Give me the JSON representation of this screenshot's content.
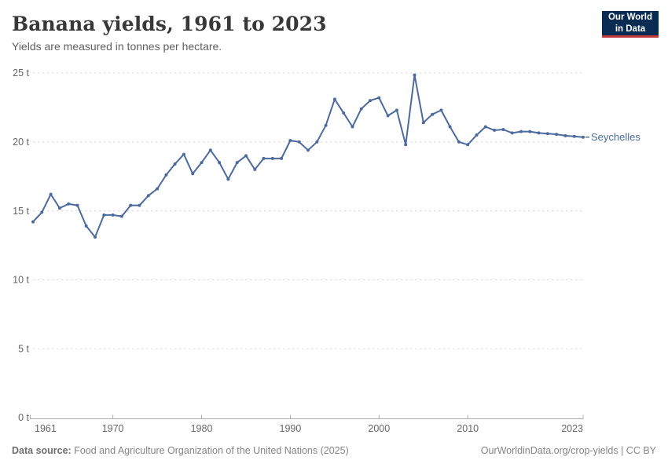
{
  "header": {
    "title": "Banana yields, 1961 to 2023",
    "subtitle": "Yields are measured in tonnes per hectare."
  },
  "logo": {
    "line1": "Our World",
    "line2": "in Data",
    "bg_color": "#0a2c52",
    "accent_color": "#c23a38"
  },
  "chart_data": {
    "type": "line",
    "title": "Banana yields, 1961 to 2023",
    "subtitle": "Yields are measured in tonnes per hectare.",
    "unit": "t",
    "xlim": [
      1961,
      2023
    ],
    "ylim": [
      0,
      25
    ],
    "grid": "horizontal-dashed",
    "legend_position": "end-of-line-label",
    "x": [
      1961,
      1962,
      1963,
      1964,
      1965,
      1966,
      1967,
      1968,
      1969,
      1970,
      1971,
      1972,
      1973,
      1974,
      1975,
      1976,
      1977,
      1978,
      1979,
      1980,
      1981,
      1982,
      1983,
      1984,
      1985,
      1986,
      1987,
      1988,
      1989,
      1990,
      1991,
      1992,
      1993,
      1994,
      1995,
      1996,
      1997,
      1998,
      1999,
      2000,
      2001,
      2002,
      2003,
      2004,
      2005,
      2006,
      2007,
      2008,
      2009,
      2010,
      2011,
      2012,
      2013,
      2014,
      2015,
      2016,
      2017,
      2018,
      2019,
      2020,
      2021,
      2022,
      2023
    ],
    "series": [
      {
        "name": "Seychelles",
        "color": "#4c6a9c",
        "values": [
          14.2,
          14.9,
          16.2,
          15.2,
          15.5,
          15.4,
          13.9,
          13.1,
          14.7,
          14.7,
          14.6,
          15.4,
          15.4,
          16.1,
          16.6,
          17.6,
          18.4,
          19.1,
          17.7,
          18.5,
          19.4,
          18.5,
          17.3,
          18.5,
          19.0,
          18.0,
          18.8,
          18.8,
          18.8,
          20.1,
          20.0,
          19.4,
          20.0,
          21.2,
          23.1,
          22.1,
          21.1,
          22.4,
          23.0,
          23.2,
          21.9,
          22.3,
          19.8,
          24.85,
          21.4,
          22.0,
          22.3,
          21.1,
          20.0,
          19.8,
          20.5,
          21.1,
          20.85,
          20.9,
          20.65,
          20.75,
          20.75,
          20.65,
          20.6,
          20.55,
          20.45,
          20.4,
          20.35
        ]
      }
    ],
    "yticks": [
      {
        "v": 0,
        "label": "0 t"
      },
      {
        "v": 5,
        "label": "5 t"
      },
      {
        "v": 10,
        "label": "10 t"
      },
      {
        "v": 15,
        "label": "15 t"
      },
      {
        "v": 20,
        "label": "20 t"
      },
      {
        "v": 25,
        "label": "25 t"
      }
    ],
    "xticks": [
      {
        "v": 1961,
        "label": "1961",
        "align": "start"
      },
      {
        "v": 1970,
        "label": "1970",
        "align": "middle"
      },
      {
        "v": 1980,
        "label": "1980",
        "align": "middle"
      },
      {
        "v": 1990,
        "label": "1990",
        "align": "middle"
      },
      {
        "v": 2000,
        "label": "2000",
        "align": "middle"
      },
      {
        "v": 2010,
        "label": "2010",
        "align": "middle"
      },
      {
        "v": 2023,
        "label": "2023",
        "align": "end"
      }
    ],
    "colors": {
      "line": "#4c6a9c",
      "gridline": "#dadada",
      "axis": "#adadad",
      "tick_label": "#666666"
    }
  },
  "footer": {
    "source_label": "Data source:",
    "source_text": "Food and Agriculture Organization of the United Nations (2025)",
    "attribution": "OurWorldinData.org/crop-yields | CC BY"
  }
}
